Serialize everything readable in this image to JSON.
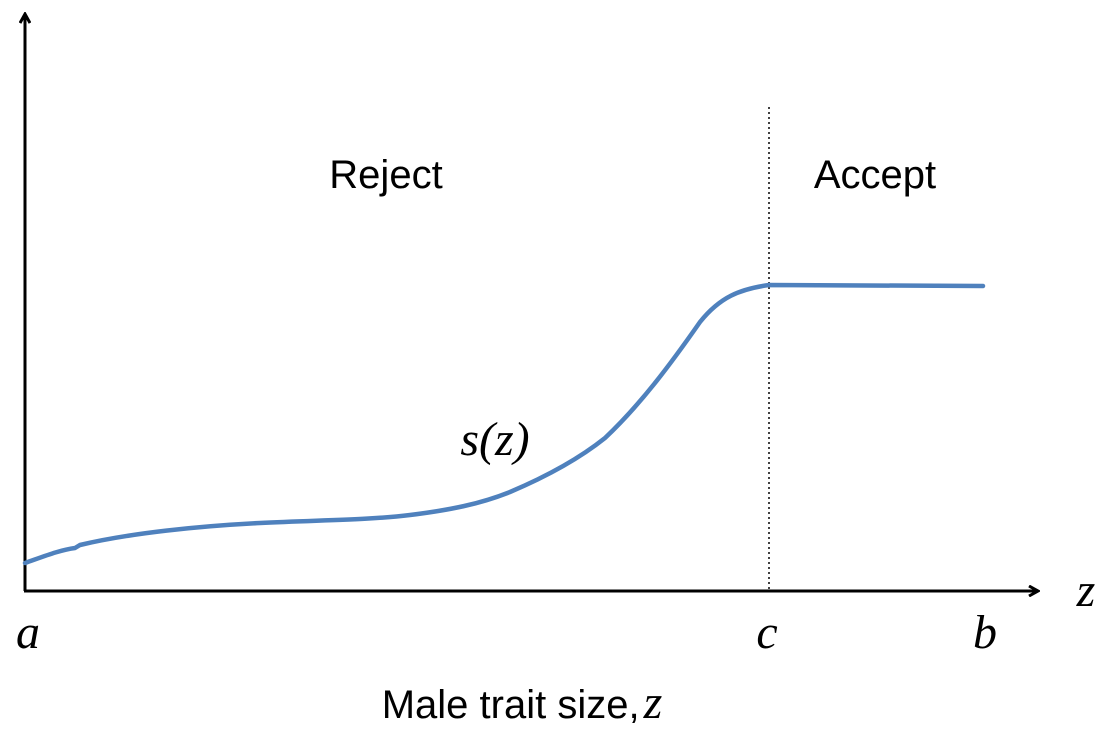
{
  "regions": [
    "Reject",
    "Accept"
  ],
  "curve_label": "s(z)",
  "x_axis": {
    "label": "Male trait size,",
    "label_var": "z",
    "end_label": "z",
    "points": [
      "a",
      "c",
      "b"
    ]
  }
}
